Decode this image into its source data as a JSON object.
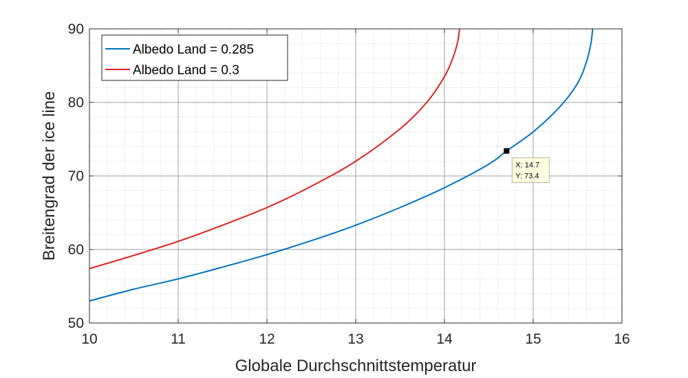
{
  "chart_data": {
    "type": "line",
    "title": "",
    "xlabel": "Globale Durchschnittstemperatur",
    "ylabel": "Breitengrad der ice line",
    "xlim": [
      10,
      16
    ],
    "ylim": [
      50,
      90
    ],
    "xticks": [
      "10",
      "11",
      "12",
      "13",
      "14",
      "15",
      "16"
    ],
    "yticks": [
      "50",
      "60",
      "70",
      "80",
      "90"
    ],
    "grid": true,
    "minor_grid": true,
    "legend_position": "top-left",
    "series": [
      {
        "name": "Albedo Land = 0.285",
        "color": "#0072BD",
        "x": [
          10.0,
          10.5,
          11.0,
          11.5,
          12.0,
          12.5,
          13.0,
          13.5,
          14.0,
          14.5,
          14.7,
          15.0,
          15.3,
          15.5,
          15.6,
          15.65,
          15.67
        ],
        "y": [
          53.0,
          54.6,
          56.0,
          57.6,
          59.3,
          61.2,
          63.3,
          65.7,
          68.4,
          71.6,
          73.4,
          76.0,
          79.4,
          82.6,
          85.5,
          88.0,
          90.0
        ]
      },
      {
        "name": "Albedo Land = 0.3",
        "color": "#D95319",
        "x": [
          10.0,
          10.5,
          11.0,
          11.5,
          12.0,
          12.5,
          13.0,
          13.5,
          13.8,
          14.0,
          14.1,
          14.15,
          14.17
        ],
        "y": [
          57.4,
          59.2,
          61.1,
          63.3,
          65.7,
          68.6,
          72.0,
          76.4,
          80.0,
          83.5,
          86.2,
          88.3,
          90.0
        ]
      }
    ],
    "datatip": {
      "x_text": "X: 14.7",
      "y_text": "Y: 73.4",
      "x": 14.7,
      "y": 73.4
    }
  }
}
